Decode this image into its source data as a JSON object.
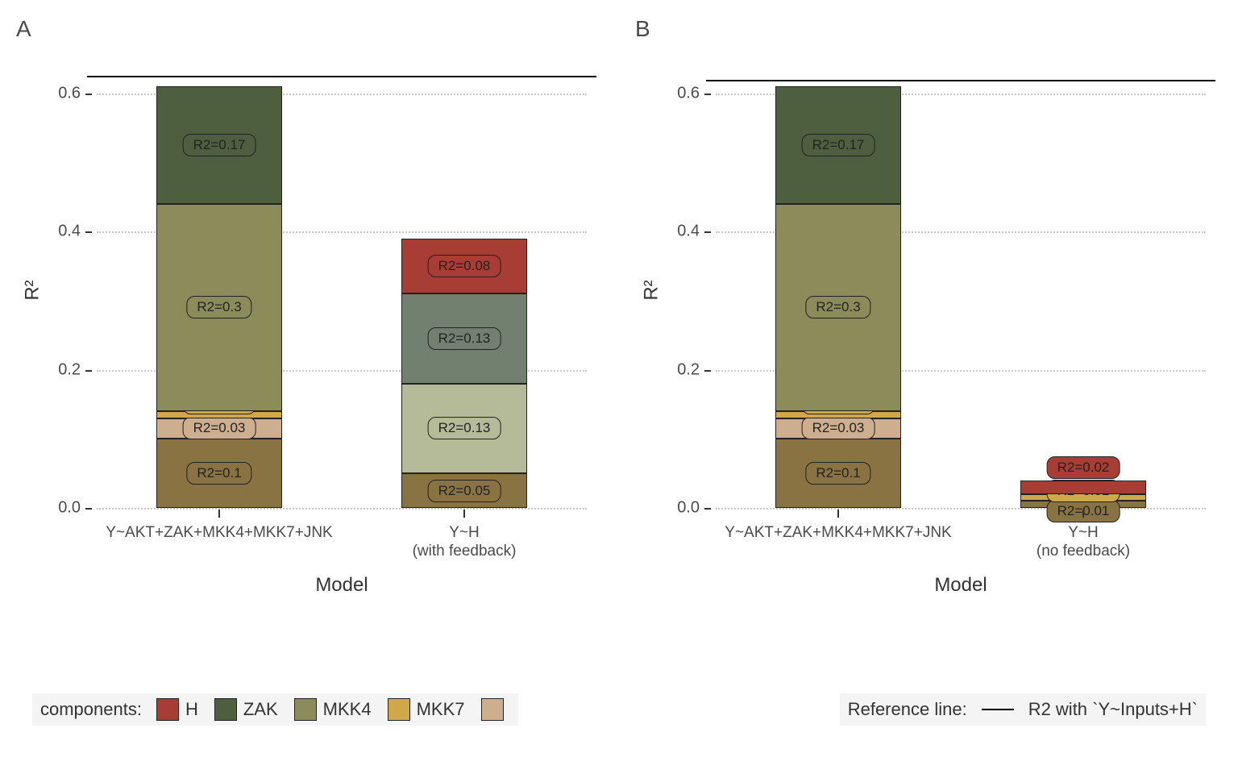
{
  "colors": {
    "H": "#a73d34",
    "ZAK": "#4e5f3f",
    "MKK4": "#8b8c5a",
    "MKK7": "#d1a849",
    "JNK_tan": "#cdae8f",
    "JNK_brown": "#8a7343",
    "ZAK_muted": "#728070",
    "MKK4_muted": "#b5bb99",
    "background": "#ffffff",
    "grid": "#c9c9c9",
    "ref": "#000000"
  },
  "y_axis": {
    "title": "R²",
    "ticks": [
      0.0,
      0.2,
      0.4,
      0.6
    ],
    "tick_labels": [
      "0.0",
      "0.2",
      "0.4",
      "0.6"
    ],
    "max": 0.63
  },
  "x_axis_title": "Model",
  "panelA": {
    "label": "A",
    "ref_y": 0.625,
    "bars": [
      {
        "x_label": "Y~AKT+ZAK+MKK4+MKK7+JNK",
        "x_sub": "",
        "segments": [
          {
            "color_key": "JNK_brown",
            "value": 0.1,
            "label": "R2=0.1"
          },
          {
            "color_key": "JNK_tan",
            "value": 0.03,
            "label": "R2=0.03"
          },
          {
            "color_key": "MKK7",
            "value": 0.01,
            "label": "R2=0.01",
            "label_offset_y": -14
          },
          {
            "color_key": "MKK4",
            "value": 0.3,
            "label": "R2=0.3"
          },
          {
            "color_key": "ZAK",
            "value": 0.17,
            "label": "R2=0.17"
          }
        ]
      },
      {
        "x_label": "Y~H",
        "x_sub": "(with feedback)",
        "segments": [
          {
            "color_key": "JNK_brown",
            "value": 0.05,
            "label": "R2=0.05"
          },
          {
            "color_key": "MKK4_muted",
            "value": 0.13,
            "label": "R2=0.13"
          },
          {
            "color_key": "ZAK_muted",
            "value": 0.13,
            "label": "R2=0.13"
          },
          {
            "color_key": "H",
            "value": 0.08,
            "label": "R2=0.08"
          }
        ]
      }
    ]
  },
  "panelB": {
    "label": "B",
    "ref_y": 0.62,
    "bars": [
      {
        "x_label": "Y~AKT+ZAK+MKK4+MKK7+JNK",
        "x_sub": "",
        "segments": [
          {
            "color_key": "JNK_brown",
            "value": 0.1,
            "label": "R2=0.1"
          },
          {
            "color_key": "JNK_tan",
            "value": 0.03,
            "label": "R2=0.03"
          },
          {
            "color_key": "MKK7",
            "value": 0.01,
            "label": "R2=0.01",
            "label_offset_y": -14
          },
          {
            "color_key": "MKK4",
            "value": 0.3,
            "label": "R2=0.3"
          },
          {
            "color_key": "ZAK",
            "value": 0.17,
            "label": "R2=0.17"
          }
        ]
      },
      {
        "x_label": "Y~H",
        "x_sub": "(no feedback)",
        "segments": [
          {
            "color_key": "JNK_brown",
            "value": 0.01,
            "label": "R2=0.01",
            "label_offset_y": 8
          },
          {
            "color_key": "MKK7",
            "value": 0.01,
            "label": "R2=0.01",
            "label_offset_y": -8
          },
          {
            "color_key": "H",
            "value": 0.02,
            "label": "R2=0.02",
            "label_offset_y": -24
          }
        ]
      }
    ]
  },
  "legend_components": {
    "title": "components:",
    "items": [
      {
        "label": "H",
        "color_key": "H"
      },
      {
        "label": "ZAK",
        "color_key": "ZAK"
      },
      {
        "label": "MKK4",
        "color_key": "MKK4"
      },
      {
        "label": "MKK7",
        "color_key": "MKK7"
      },
      {
        "label": "",
        "color_key": "JNK_tan"
      }
    ]
  },
  "legend_ref": {
    "title": "Reference line:",
    "label": "R2 with `Y~Inputs+H`"
  }
}
